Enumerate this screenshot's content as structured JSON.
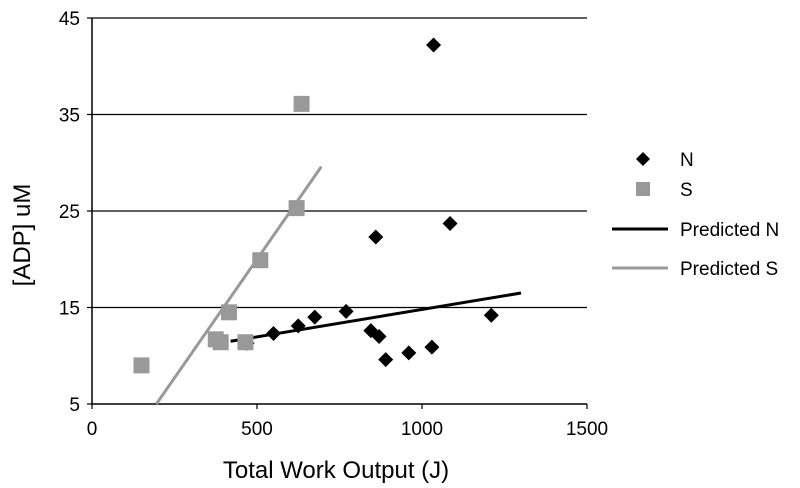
{
  "chart_data": {
    "type": "scatter",
    "title": "",
    "xlabel": "Total Work Output (J)",
    "ylabel": "[ADP] uM",
    "xlim": [
      0,
      1500
    ],
    "ylim": [
      5,
      45
    ],
    "xticks": [
      0,
      500,
      1000,
      1500
    ],
    "yticks": [
      5,
      15,
      25,
      35,
      45
    ],
    "grid": "horizontal",
    "legend_position": "right",
    "series": [
      {
        "name": "N",
        "kind": "points",
        "marker": "diamond",
        "color": "#000000",
        "points": [
          [
            470,
            11.3
          ],
          [
            550,
            12.3
          ],
          [
            625,
            13.1
          ],
          [
            675,
            14.0
          ],
          [
            770,
            14.6
          ],
          [
            845,
            12.6
          ],
          [
            860,
            22.3
          ],
          [
            870,
            12.0
          ],
          [
            890,
            9.6
          ],
          [
            960,
            10.3
          ],
          [
            1030,
            10.9
          ],
          [
            1035,
            42.2
          ],
          [
            1085,
            23.7
          ],
          [
            1210,
            14.2
          ]
        ]
      },
      {
        "name": "S",
        "kind": "points",
        "marker": "square",
        "color": "#999999",
        "points": [
          [
            150,
            9.0
          ],
          [
            375,
            11.7
          ],
          [
            390,
            11.4
          ],
          [
            415,
            14.5
          ],
          [
            465,
            11.4
          ],
          [
            510,
            19.9
          ],
          [
            620,
            25.3
          ],
          [
            635,
            36.1
          ]
        ]
      },
      {
        "name": "Predicted N",
        "kind": "line",
        "color": "#000000",
        "points": [
          [
            420,
            11.5
          ],
          [
            1300,
            16.5
          ]
        ]
      },
      {
        "name": "Predicted S",
        "kind": "line",
        "color": "#999999",
        "points": [
          [
            195,
            5.0
          ],
          [
            695,
            29.6
          ]
        ]
      }
    ]
  }
}
